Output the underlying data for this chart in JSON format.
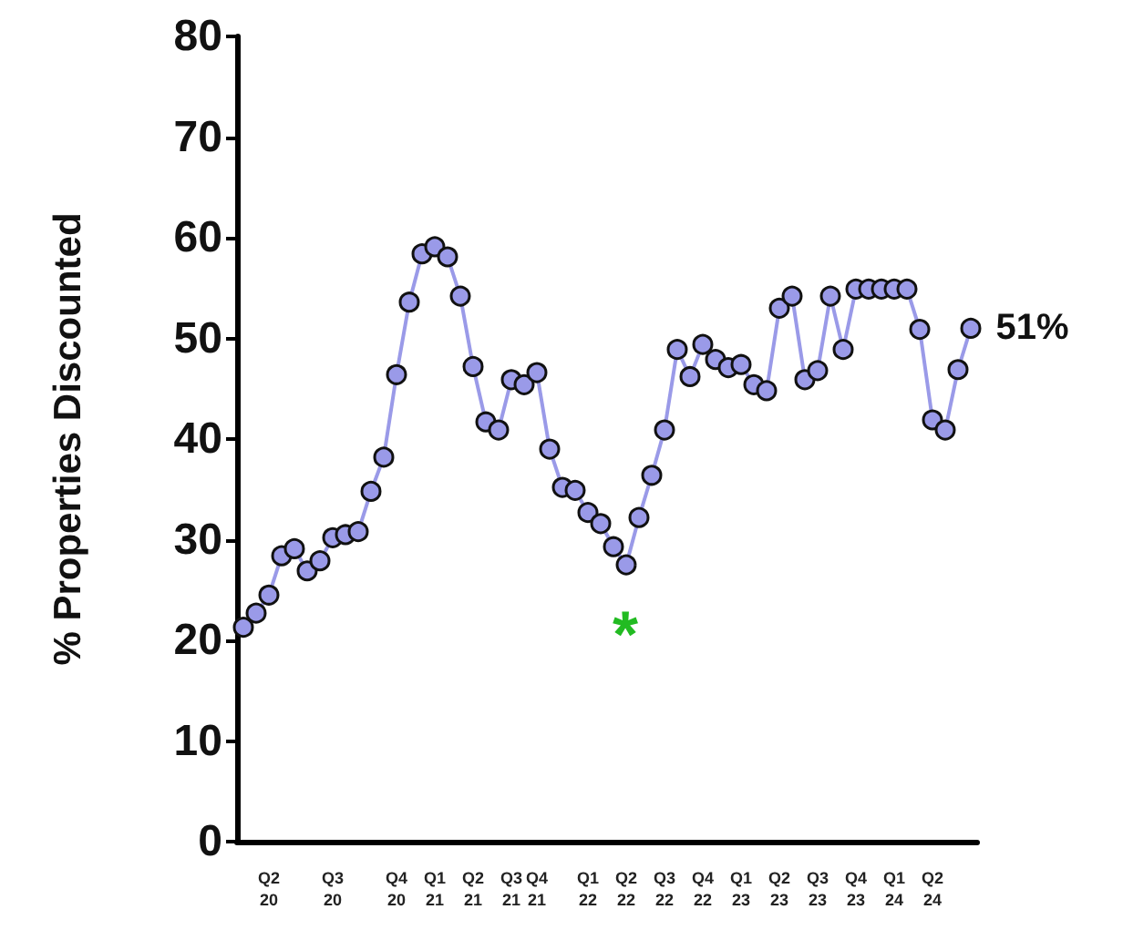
{
  "chart_data": {
    "type": "line",
    "ylabel": "% Properties Discounted",
    "categories": [
      null,
      null,
      "Q2 20",
      null,
      null,
      null,
      null,
      "Q3 20",
      null,
      null,
      null,
      null,
      "Q4 20",
      null,
      null,
      "Q1 21",
      null,
      null,
      "Q2 21",
      null,
      null,
      "Q3 21",
      null,
      "Q4 21",
      null,
      null,
      null,
      "Q1 22",
      null,
      null,
      "Q2 22",
      null,
      null,
      "Q3 22",
      null,
      null,
      "Q4 22",
      null,
      null,
      "Q1 23",
      null,
      null,
      "Q2 23",
      null,
      null,
      "Q3 23",
      null,
      null,
      "Q4 23",
      null,
      null,
      "Q1 24",
      null,
      null,
      "Q2 24",
      null,
      null,
      null
    ],
    "series": [
      {
        "color": "#9a9ae8",
        "values": [
          21.3,
          22.7,
          24.5,
          28.4,
          29.1,
          26.9,
          27.9,
          30.2,
          30.5,
          30.8,
          34.8,
          38.2,
          46.4,
          53.6,
          58.4,
          59.1,
          58.1,
          54.2,
          47.2,
          41.7,
          40.9,
          45.9,
          45.4,
          46.6,
          39.0,
          35.2,
          34.9,
          32.7,
          31.6,
          29.3,
          27.5,
          32.2,
          36.4,
          40.9,
          48.9,
          46.2,
          49.4,
          47.9,
          47.1,
          47.4,
          45.4,
          44.8,
          53.0,
          54.2,
          45.9,
          46.8,
          54.2,
          48.9,
          54.9,
          54.9,
          54.9,
          54.9,
          54.9,
          50.9,
          41.9,
          40.9,
          46.9,
          51
        ],
        "value_labels": [
          null,
          null,
          null,
          null,
          null,
          null,
          null,
          null,
          null,
          null,
          null,
          null,
          null,
          null,
          null,
          null,
          null,
          null,
          null,
          null,
          null,
          null,
          null,
          null,
          null,
          null,
          null,
          null,
          null,
          null,
          null,
          null,
          null,
          null,
          null,
          null,
          null,
          null,
          null,
          null,
          null,
          null,
          null,
          null,
          null,
          null,
          null,
          null,
          null,
          null,
          null,
          null,
          null,
          null,
          null,
          null,
          null,
          "51%"
        ]
      }
    ],
    "annotations": [
      "*"
    ],
    "ylim": [
      0,
      80
    ],
    "yticks": [
      0,
      10,
      20,
      30,
      40,
      50,
      60,
      70,
      80
    ],
    "grid": false,
    "marker": "circle",
    "line_style": "solid"
  }
}
